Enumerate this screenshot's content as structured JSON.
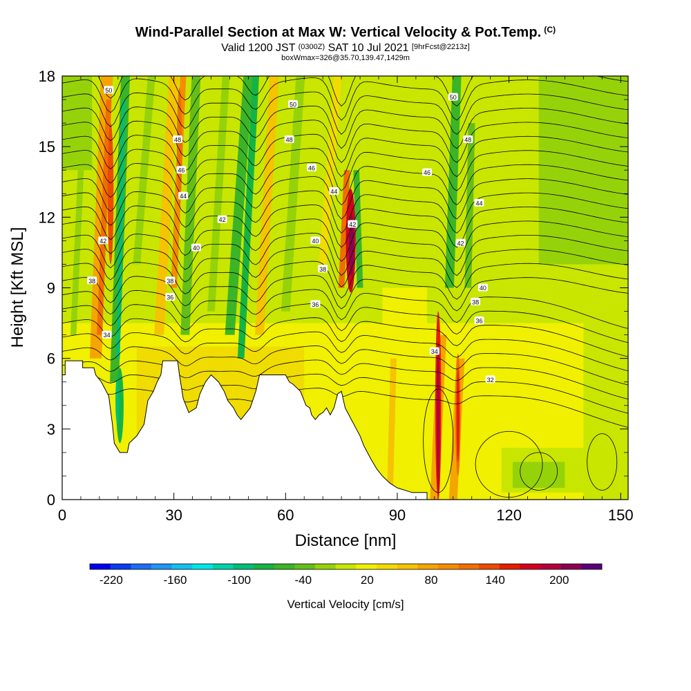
{
  "title": {
    "main": "Wind-Parallel Section at Max W: Vertical Velocity & Pot.Temp.",
    "copyright": "(C)",
    "valid_prefix": "Valid 1200 JST",
    "valid_utc": "(0300Z)",
    "valid_date": "SAT 10 Jul 2021",
    "forecast": "[9hrFcst@2213z]",
    "box_info": "boxWmax=326@35.70,139.47,1429m"
  },
  "chart_data": {
    "type": "heatmap",
    "xlabel": "Distance [nm]",
    "ylabel": "Height [Kft MSL]",
    "xlim": [
      0,
      152
    ],
    "ylim": [
      0,
      18
    ],
    "x_ticks": [
      0,
      30,
      60,
      90,
      120,
      150
    ],
    "y_ticks": [
      0,
      3,
      6,
      9,
      12,
      15,
      18
    ],
    "colorbar": {
      "label": "Vertical Velocity [cm/s]",
      "min": -240,
      "max": 240,
      "tick_labels": [
        -220,
        -160,
        -100,
        -40,
        20,
        80,
        140,
        200
      ],
      "colors": [
        "#0000ee",
        "#0a3cf0",
        "#1a6ef2",
        "#1e96f4",
        "#16bef0",
        "#00e6e6",
        "#00d2a8",
        "#00be78",
        "#14b444",
        "#3cb428",
        "#64be18",
        "#96d20a",
        "#c8e600",
        "#f0f000",
        "#f0dc00",
        "#f5c300",
        "#f5a500",
        "#f58c00",
        "#f06e00",
        "#eb4b00",
        "#e61e00",
        "#d2001e",
        "#b4003c",
        "#8c0050",
        "#5a0078"
      ]
    },
    "theta_contour_labels": [
      {
        "x": 12.5,
        "y": 17.4,
        "text": "50"
      },
      {
        "x": 31,
        "y": 15.3,
        "text": "48"
      },
      {
        "x": 32,
        "y": 14.0,
        "text": "46"
      },
      {
        "x": 32.5,
        "y": 12.9,
        "text": "44"
      },
      {
        "x": 11,
        "y": 11.0,
        "text": "42"
      },
      {
        "x": 8,
        "y": 9.3,
        "text": "38"
      },
      {
        "x": 12,
        "y": 7.0,
        "text": "34"
      },
      {
        "x": 43,
        "y": 11.9,
        "text": "42"
      },
      {
        "x": 36,
        "y": 10.7,
        "text": "40"
      },
      {
        "x": 29,
        "y": 9.3,
        "text": "38"
      },
      {
        "x": 29,
        "y": 8.6,
        "text": "36"
      },
      {
        "x": 62,
        "y": 16.8,
        "text": "50"
      },
      {
        "x": 61,
        "y": 15.3,
        "text": "48"
      },
      {
        "x": 67,
        "y": 14.1,
        "text": "46"
      },
      {
        "x": 73,
        "y": 13.1,
        "text": "44"
      },
      {
        "x": 78,
        "y": 11.7,
        "text": "42"
      },
      {
        "x": 68,
        "y": 11.0,
        "text": "40"
      },
      {
        "x": 70,
        "y": 9.8,
        "text": "38"
      },
      {
        "x": 68,
        "y": 8.3,
        "text": "36"
      },
      {
        "x": 105,
        "y": 17.1,
        "text": "50"
      },
      {
        "x": 109,
        "y": 15.3,
        "text": "48"
      },
      {
        "x": 98,
        "y": 13.9,
        "text": "46"
      },
      {
        "x": 112,
        "y": 12.6,
        "text": "44"
      },
      {
        "x": 107,
        "y": 10.9,
        "text": "42"
      },
      {
        "x": 113,
        "y": 9.0,
        "text": "40"
      },
      {
        "x": 111,
        "y": 8.4,
        "text": "38"
      },
      {
        "x": 112,
        "y": 7.6,
        "text": "36"
      },
      {
        "x": 100,
        "y": 6.3,
        "text": "34"
      },
      {
        "x": 115,
        "y": 5.1,
        "text": "32"
      }
    ]
  }
}
